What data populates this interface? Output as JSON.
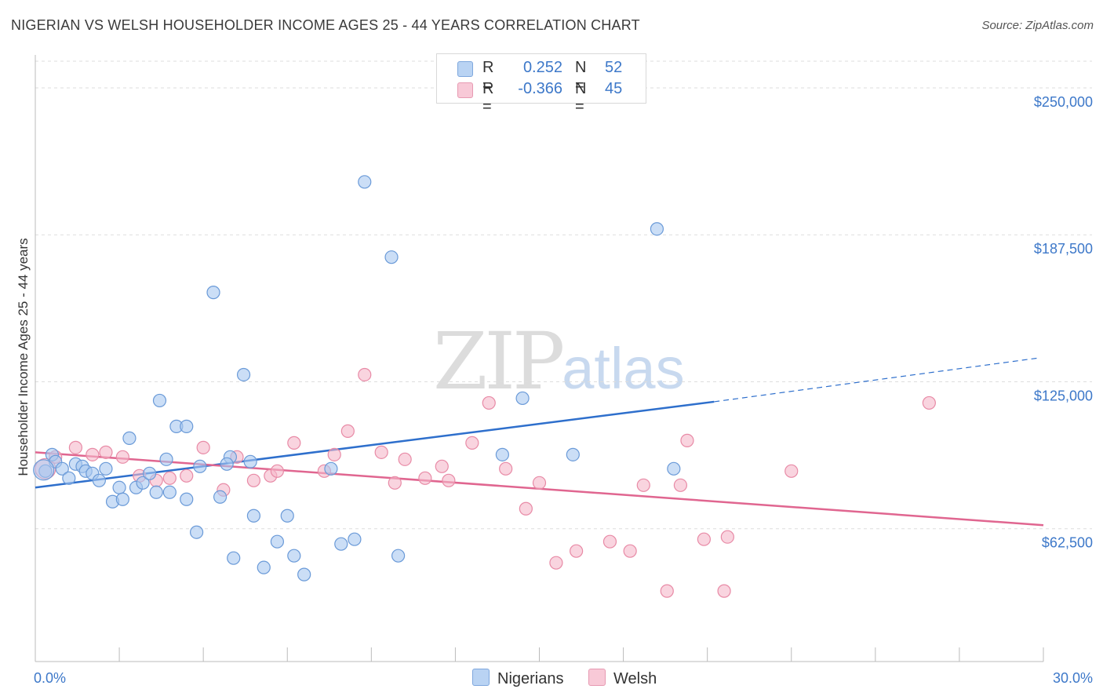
{
  "header": {
    "title": "NIGERIAN VS WELSH HOUSEHOLDER INCOME AGES 25 - 44 YEARS CORRELATION CHART",
    "source": "Source: ZipAtlas.com"
  },
  "watermark": {
    "zip": "ZIP",
    "atlas": "atlas"
  },
  "legend": {
    "rows": [
      {
        "r_label": "R =",
        "r_value": "0.252",
        "n_label": "N =",
        "n_value": "52"
      },
      {
        "r_label": "R =",
        "r_value": "-0.366",
        "n_label": "N =",
        "n_value": "45"
      }
    ]
  },
  "bottom_legend": {
    "nigerians": "Nigerians",
    "welsh": "Welsh"
  },
  "colors": {
    "nigerians_fill": "#a9c8f0",
    "nigerians_stroke": "#6a9ad8",
    "nigerians_line": "#2e6fcc",
    "welsh_fill": "#f5b8ca",
    "welsh_stroke": "#e88aa6",
    "welsh_line": "#e06690",
    "axis_text": "#3d78c9",
    "grid": "#dddddd"
  },
  "chart_data": {
    "type": "scatter",
    "title": "NIGERIAN VS WELSH HOUSEHOLDER INCOME AGES 25 - 44 YEARS CORRELATION CHART",
    "xlabel": "",
    "ylabel": "Householder Income Ages 25 - 44 years",
    "xlim": [
      0,
      30
    ],
    "ylim": [
      6000,
      264000
    ],
    "x_ticks_labeled": [
      {
        "value": 0,
        "label": "0.0%"
      },
      {
        "value": 30,
        "label": "30.0%"
      }
    ],
    "y_ticks": [
      {
        "value": 250000,
        "label": "$250,000"
      },
      {
        "value": 187500,
        "label": "$187,500"
      },
      {
        "value": 125000,
        "label": "$125,000"
      },
      {
        "value": 62500,
        "label": "$62,500"
      }
    ],
    "grid": true,
    "legend_position": "top-center",
    "series": [
      {
        "name": "Nigerians",
        "r": 0.252,
        "n": 52,
        "trend": {
          "x0": 0,
          "y0": 80000,
          "x1": 20.2,
          "y1": 116500,
          "dash_x1": 29.8,
          "dash_y1": 135000
        },
        "points": [
          [
            0.3,
            87000
          ],
          [
            0.5,
            94000
          ],
          [
            0.6,
            91000
          ],
          [
            0.8,
            88000
          ],
          [
            1.0,
            84000
          ],
          [
            1.2,
            90000
          ],
          [
            1.4,
            89000
          ],
          [
            1.5,
            87000
          ],
          [
            1.7,
            86000
          ],
          [
            1.9,
            83000
          ],
          [
            2.1,
            88000
          ],
          [
            2.3,
            74000
          ],
          [
            2.5,
            80000
          ],
          [
            2.6,
            75000
          ],
          [
            2.8,
            101000
          ],
          [
            3.0,
            80000
          ],
          [
            3.2,
            82000
          ],
          [
            3.4,
            86000
          ],
          [
            3.6,
            78000
          ],
          [
            3.7,
            117000
          ],
          [
            3.9,
            92000
          ],
          [
            4.0,
            78000
          ],
          [
            4.2,
            106000
          ],
          [
            4.5,
            106000
          ],
          [
            4.5,
            75000
          ],
          [
            4.8,
            61000
          ],
          [
            4.9,
            89000
          ],
          [
            5.3,
            163000
          ],
          [
            5.5,
            76000
          ],
          [
            5.8,
            93000
          ],
          [
            5.7,
            90000
          ],
          [
            5.9,
            50000
          ],
          [
            6.2,
            128000
          ],
          [
            6.4,
            91000
          ],
          [
            6.5,
            68000
          ],
          [
            6.8,
            46000
          ],
          [
            7.2,
            57000
          ],
          [
            7.5,
            68000
          ],
          [
            7.7,
            51000
          ],
          [
            8.0,
            43000
          ],
          [
            8.8,
            88000
          ],
          [
            9.1,
            56000
          ],
          [
            9.5,
            58000
          ],
          [
            9.8,
            210000
          ],
          [
            10.6,
            178000
          ],
          [
            10.8,
            51000
          ],
          [
            13.9,
            94000
          ],
          [
            14.5,
            118000
          ],
          [
            16.0,
            94000
          ],
          [
            18.5,
            190000
          ],
          [
            19.0,
            88000
          ],
          [
            0.25,
            87500
          ]
        ]
      },
      {
        "name": "Welsh",
        "r": -0.366,
        "n": 45,
        "trend": {
          "x0": 0,
          "y0": 95000,
          "x1": 30,
          "y1": 64000
        },
        "points": [
          [
            0.3,
            88000
          ],
          [
            0.6,
            93000
          ],
          [
            1.2,
            97000
          ],
          [
            1.7,
            94000
          ],
          [
            2.1,
            95000
          ],
          [
            2.6,
            93000
          ],
          [
            3.1,
            85000
          ],
          [
            3.6,
            83000
          ],
          [
            4.0,
            84000
          ],
          [
            4.5,
            85000
          ],
          [
            5.0,
            97000
          ],
          [
            5.6,
            79000
          ],
          [
            6.0,
            93000
          ],
          [
            6.5,
            83000
          ],
          [
            7.0,
            85000
          ],
          [
            7.2,
            87000
          ],
          [
            7.7,
            99000
          ],
          [
            8.6,
            87000
          ],
          [
            8.9,
            94000
          ],
          [
            9.3,
            104000
          ],
          [
            9.8,
            128000
          ],
          [
            10.3,
            95000
          ],
          [
            10.7,
            82000
          ],
          [
            11.0,
            92000
          ],
          [
            11.6,
            84000
          ],
          [
            12.1,
            89000
          ],
          [
            12.3,
            83000
          ],
          [
            13.0,
            99000
          ],
          [
            13.5,
            116000
          ],
          [
            14.0,
            88000
          ],
          [
            14.6,
            71000
          ],
          [
            15.0,
            82000
          ],
          [
            15.5,
            48000
          ],
          [
            16.1,
            53000
          ],
          [
            17.1,
            57000
          ],
          [
            17.7,
            53000
          ],
          [
            18.1,
            81000
          ],
          [
            18.8,
            36000
          ],
          [
            19.2,
            81000
          ],
          [
            19.4,
            100000
          ],
          [
            19.9,
            58000
          ],
          [
            20.5,
            36000
          ],
          [
            20.6,
            59000
          ],
          [
            22.5,
            87000
          ],
          [
            26.6,
            116000
          ]
        ]
      }
    ]
  }
}
